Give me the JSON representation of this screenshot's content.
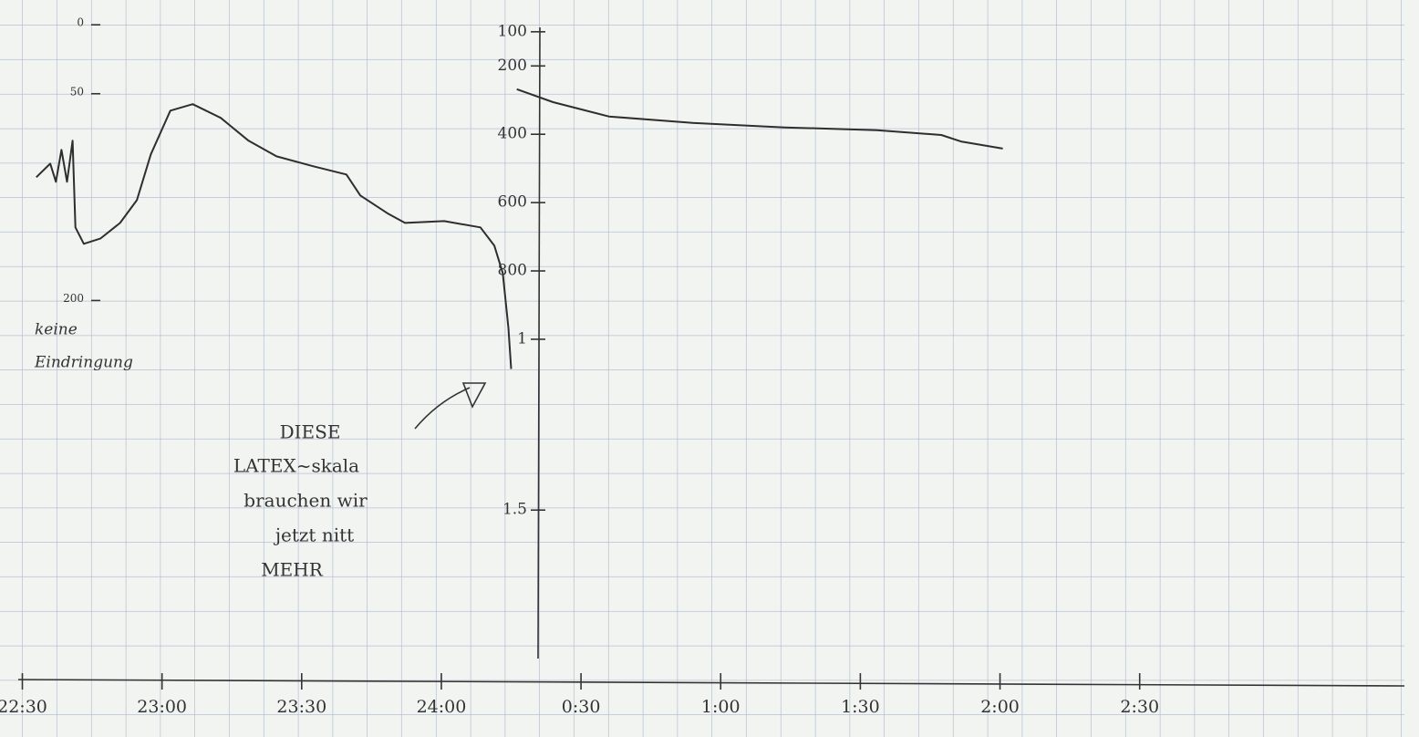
{
  "chart_data": {
    "type": "line",
    "annotations": [
      "keine",
      "Eindringung",
      "DIESE",
      "LATEX~skala",
      "brauchen wir",
      "jetzt nitt",
      "MEHR"
    ],
    "xlim": [
      22.42,
      27.5
    ],
    "xticks": [
      {
        "value": 22.5,
        "label": "22:30"
      },
      {
        "value": 23,
        "label": "23:00"
      },
      {
        "value": 23.5,
        "label": "23:30"
      },
      {
        "value": 24,
        "label": "24:00"
      },
      {
        "value": 24.5,
        "label": "0:30"
      },
      {
        "value": 25,
        "label": "1:00"
      },
      {
        "value": 25.5,
        "label": "1:30"
      },
      {
        "value": 26,
        "label": "2:00"
      },
      {
        "value": 26.5,
        "label": "2:30"
      }
    ],
    "ylim": [
      -18,
      475
    ],
    "yticks": [
      0,
      50,
      200
    ],
    "y2lim": [
      7,
      1996
    ],
    "y2ticks": [
      100,
      200,
      400,
      600,
      800,
      {
        "value": 1000,
        "label": "1"
      },
      {
        "value": 1500,
        "label": "1.5"
      }
    ],
    "series": [
      {
        "color": "#2e2e2e",
        "x": [
          22.55,
          22.6,
          22.62,
          22.64,
          22.66,
          22.68,
          22.69,
          22.72,
          22.78,
          22.85,
          22.91,
          22.96,
          23.03,
          23.11,
          23.21,
          23.31,
          23.41,
          23.54,
          23.66,
          23.71,
          23.81,
          23.87,
          24.01,
          24.14,
          24.19,
          24.22,
          24.24,
          24.25
        ],
        "values": [
          110.6,
          100.7,
          113.9,
          90.7,
          113.9,
          84.1,
          147,
          158.9,
          155,
          143.7,
          127.2,
          94,
          62.3,
          57.6,
          67.5,
          84.1,
          95.4,
          102.6,
          108.6,
          123.8,
          137.1,
          143.7,
          142.4,
          147,
          160.3,
          180.1,
          219.9,
          249.7
        ]
      },
      {
        "color": "#2e2e2e",
        "axis": "y2",
        "x": [
          24.27,
          24.4,
          24.6,
          24.9,
          25.23,
          25.56,
          25.79,
          25.86,
          26.01
        ],
        "values": [
          268,
          306,
          348,
          367,
          380,
          388,
          402,
          421,
          442
        ]
      }
    ]
  }
}
